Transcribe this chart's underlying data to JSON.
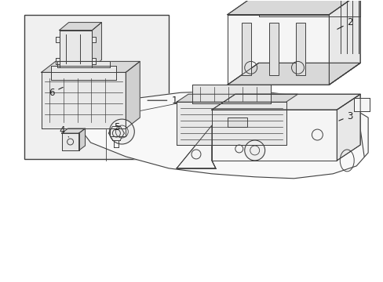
{
  "background_color": "#ffffff",
  "figure_width": 4.89,
  "figure_height": 3.6,
  "dpi": 100,
  "line_color": "#404040",
  "fill_light": "#f5f5f5",
  "fill_mid": "#e8e8e8",
  "fill_dark": "#d8d8d8",
  "label_fontsize": 8.5,
  "label_color": "#222222",
  "lw": 0.7
}
